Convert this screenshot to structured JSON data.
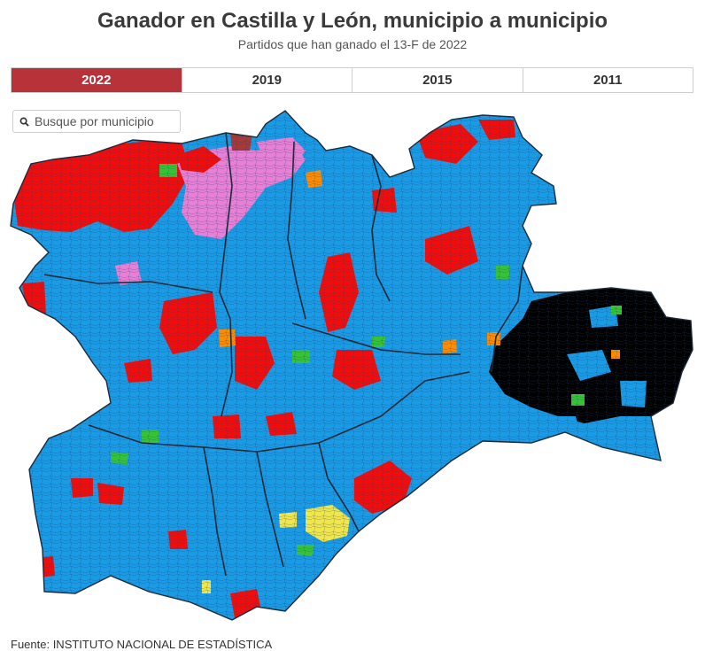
{
  "header": {
    "title": "Ganador en Castilla y León, municipio a municipio",
    "subtitle": "Partidos que han ganado el 13-F de 2022"
  },
  "tabs": [
    {
      "label": "2022",
      "active": true
    },
    {
      "label": "2019",
      "active": false
    },
    {
      "label": "2015",
      "active": false
    },
    {
      "label": "2011",
      "active": false
    }
  ],
  "search": {
    "placeholder": "Busque por municipio",
    "value": ""
  },
  "map": {
    "region": "Castilla y León",
    "party_colors": {
      "pp": "#1a9be6",
      "psoe": "#f20d0d",
      "upl": "#e880d6",
      "soria_ya": "#000000",
      "ciudadanos": "#ff8c00",
      "podemos_iu": "#36c436",
      "por_avila": "#f1e64b",
      "other": "#a63a3a"
    },
    "accent_color": "#b8323a"
  },
  "footer": {
    "source": "Fuente: INSTITUTO NACIONAL DE ESTADÍSTICA"
  }
}
